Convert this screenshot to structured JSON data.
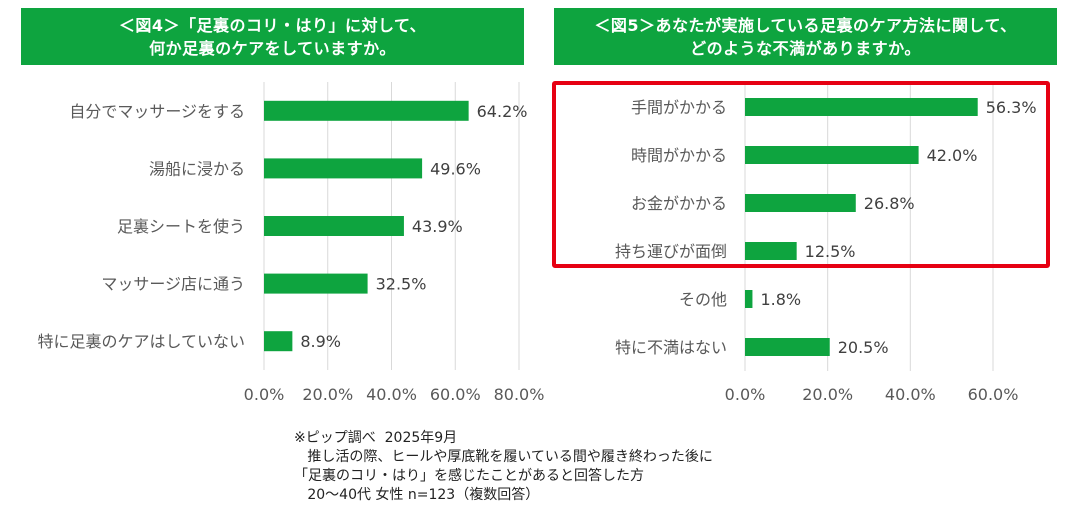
{
  "colors": {
    "bar": "#0ea43f",
    "banner": "#0ea43f",
    "highlight": "#e60012"
  },
  "chart_data": [
    {
      "type": "bar",
      "orientation": "horizontal",
      "title_lines": [
        "＜図4＞「足裏のコリ・はり」に対して、",
        "何か足裏のケアをしていますか。"
      ],
      "categories": [
        "自分でマッサージをする",
        "湯船に浸かる",
        "足裏シートを使う",
        "マッサージ店に通う",
        "特に足裏のケアはしていない"
      ],
      "values": [
        64.2,
        49.6,
        43.9,
        32.5,
        8.9
      ],
      "value_labels": [
        "64.2%",
        "49.6%",
        "43.9%",
        "32.5%",
        "8.9%"
      ],
      "xlim": [
        0,
        80
      ],
      "ticks": [
        "0.0%",
        "20.0%",
        "40.0%",
        "60.0%",
        "80.0%"
      ],
      "grid": true
    },
    {
      "type": "bar",
      "orientation": "horizontal",
      "title_lines": [
        "＜図5＞あなたが実施している足裏のケア方法に関して、",
        "どのような不満がありますか。"
      ],
      "categories": [
        "手間がかかる",
        "時間がかかる",
        "お金がかかる",
        "持ち運びが面倒",
        "その他",
        "特に不満はない"
      ],
      "values": [
        56.3,
        42.0,
        26.8,
        12.5,
        1.8,
        20.5
      ],
      "value_labels": [
        "56.3%",
        "42.0%",
        "26.8%",
        "12.5%",
        "1.8%",
        "20.5%"
      ],
      "xlim": [
        0,
        60
      ],
      "ticks": [
        "0.0%",
        "20.0%",
        "40.0%",
        "60.0%"
      ],
      "grid": true,
      "highlighted_categories": [
        "手間がかかる",
        "時間がかかる",
        "お金がかかる",
        "持ち運びが面倒"
      ]
    }
  ],
  "footnote": {
    "lines": [
      "※ピップ調べ  2025年9月",
      "   推し活の際、ヒールや厚底靴を履いている間や履き終わった後に",
      "「足裏のコリ・はり」を感じたことがあると回答した方",
      "   20〜40代 女性 n=123（複数回答）"
    ]
  }
}
